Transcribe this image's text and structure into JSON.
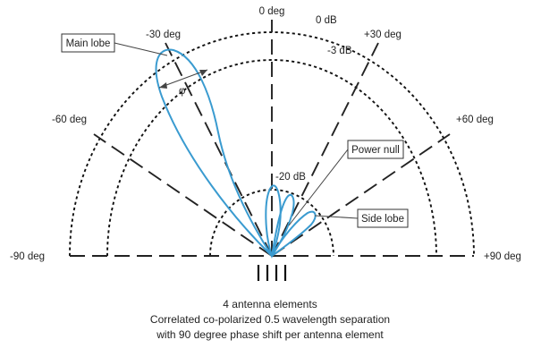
{
  "colors": {
    "pattern": "#3a9bd0",
    "ink": "#222222"
  },
  "angles": {
    "deg_0": "0 deg",
    "neg30": "-30 deg",
    "pos30": "+30 deg",
    "neg60": "-60 deg",
    "pos60": "+60 deg",
    "neg90": "-90 deg",
    "pos90": "+90 deg"
  },
  "levels": {
    "db0": "0 dB",
    "db3": "-3 dB",
    "db20": "-20 dB"
  },
  "callouts": {
    "main_lobe": "Main lobe",
    "power_null": "Power null",
    "side_lobe": "Side lobe",
    "phi": "φ"
  },
  "caption": {
    "line1": "4 antenna elements",
    "line2": "Correlated co-polarized 0.5 wavelength separation",
    "line3": "with 90 degree phase shift per antenna element"
  },
  "antenna_element_count": 4
}
